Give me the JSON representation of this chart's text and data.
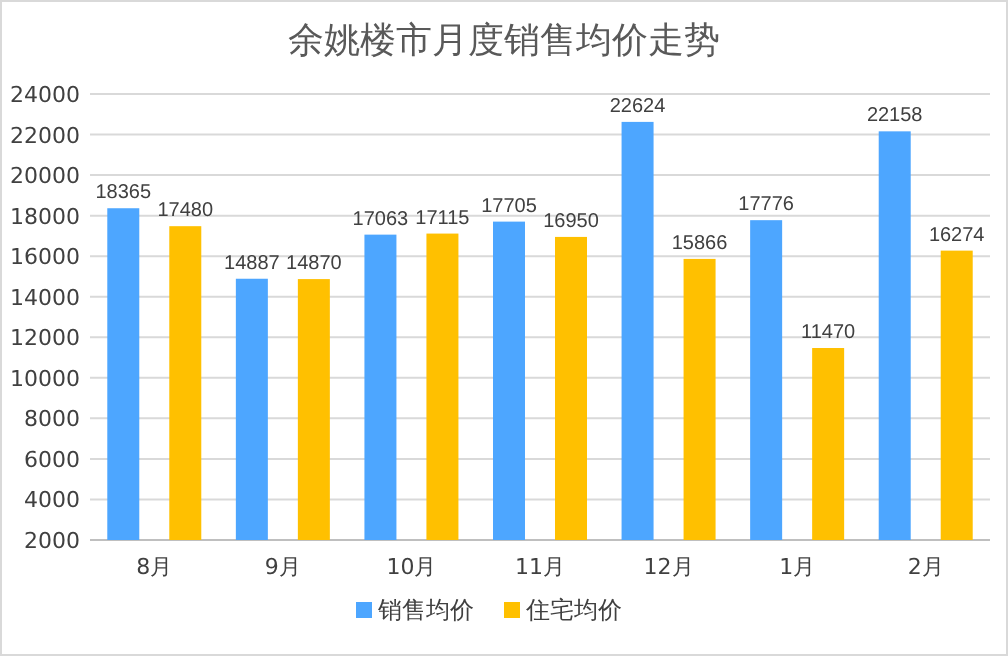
{
  "chart_data": {
    "type": "bar",
    "title": "余姚楼市月度销售均价走势",
    "categories": [
      "8月",
      "9月",
      "10月",
      "11月",
      "12月",
      "1月",
      "2月"
    ],
    "series": [
      {
        "name": "销售均价",
        "color": "#4da6ff",
        "values": [
          18365,
          14887,
          17063,
          17705,
          22624,
          17776,
          22158
        ]
      },
      {
        "name": "住宅均价",
        "color": "#ffc000",
        "values": [
          17480,
          14870,
          17115,
          16950,
          15866,
          11470,
          16274
        ]
      }
    ],
    "ylim": [
      2000,
      24000
    ],
    "yticks": [
      2000,
      4000,
      6000,
      8000,
      10000,
      12000,
      14000,
      16000,
      18000,
      20000,
      22000,
      24000
    ],
    "grid": "y",
    "legend": "bottom",
    "data_labels": true
  }
}
